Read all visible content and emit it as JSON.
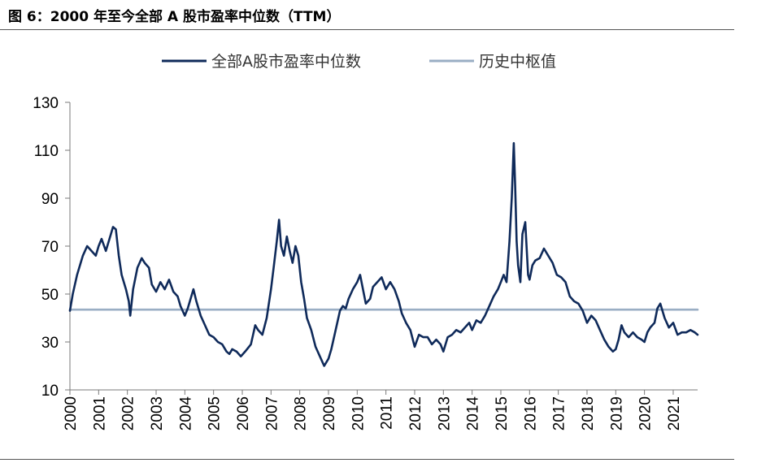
{
  "figure": {
    "title": "图 6：2000 年至今全部 A 股市盈率中位数（TTM）"
  },
  "colors": {
    "series": "#0f2a5a",
    "hline": "#9aaec4",
    "axis": "#7a7a7a"
  },
  "chart_data": {
    "type": "line",
    "title": "",
    "xlabel": "",
    "ylabel": "",
    "ylim": [
      10,
      130
    ],
    "yticks": [
      10,
      30,
      50,
      70,
      90,
      110,
      130
    ],
    "xlim": [
      2000.0,
      2021.85
    ],
    "xticks": [
      "2000",
      "2001",
      "2002",
      "2003",
      "2004",
      "2005",
      "2006",
      "2007",
      "2008",
      "2009",
      "2010",
      "2011",
      "2012",
      "2013",
      "2014",
      "2015",
      "2016",
      "2017",
      "2018",
      "2019",
      "2020",
      "2021"
    ],
    "grid": false,
    "legend": "top-center",
    "series": [
      {
        "name": "全部A股市盈率中位数",
        "points": [
          [
            2000.0,
            43
          ],
          [
            2000.1,
            50
          ],
          [
            2000.25,
            58
          ],
          [
            2000.45,
            66
          ],
          [
            2000.6,
            70
          ],
          [
            2000.75,
            68
          ],
          [
            2000.9,
            66
          ],
          [
            2001.0,
            70
          ],
          [
            2001.1,
            73
          ],
          [
            2001.25,
            68
          ],
          [
            2001.4,
            74
          ],
          [
            2001.5,
            78
          ],
          [
            2001.6,
            77
          ],
          [
            2001.7,
            66
          ],
          [
            2001.8,
            58
          ],
          [
            2001.95,
            52
          ],
          [
            2002.05,
            47
          ],
          [
            2002.1,
            41
          ],
          [
            2002.2,
            52
          ],
          [
            2002.35,
            61
          ],
          [
            2002.5,
            65
          ],
          [
            2002.6,
            63
          ],
          [
            2002.75,
            61
          ],
          [
            2002.85,
            54
          ],
          [
            2003.0,
            51
          ],
          [
            2003.15,
            55
          ],
          [
            2003.3,
            52
          ],
          [
            2003.45,
            56
          ],
          [
            2003.6,
            51
          ],
          [
            2003.75,
            49
          ],
          [
            2003.85,
            45
          ],
          [
            2004.0,
            41
          ],
          [
            2004.1,
            44
          ],
          [
            2004.2,
            48
          ],
          [
            2004.3,
            52
          ],
          [
            2004.4,
            47
          ],
          [
            2004.55,
            41
          ],
          [
            2004.7,
            37
          ],
          [
            2004.85,
            33
          ],
          [
            2005.0,
            32
          ],
          [
            2005.15,
            30
          ],
          [
            2005.3,
            29
          ],
          [
            2005.45,
            26
          ],
          [
            2005.55,
            25
          ],
          [
            2005.65,
            27
          ],
          [
            2005.8,
            26
          ],
          [
            2005.95,
            24
          ],
          [
            2006.1,
            26
          ],
          [
            2006.3,
            29
          ],
          [
            2006.45,
            37
          ],
          [
            2006.55,
            35
          ],
          [
            2006.7,
            33
          ],
          [
            2006.85,
            40
          ],
          [
            2007.0,
            52
          ],
          [
            2007.1,
            62
          ],
          [
            2007.2,
            72
          ],
          [
            2007.28,
            81
          ],
          [
            2007.35,
            70
          ],
          [
            2007.45,
            66
          ],
          [
            2007.55,
            74
          ],
          [
            2007.65,
            68
          ],
          [
            2007.75,
            63
          ],
          [
            2007.85,
            70
          ],
          [
            2007.95,
            66
          ],
          [
            2008.05,
            55
          ],
          [
            2008.15,
            48
          ],
          [
            2008.25,
            40
          ],
          [
            2008.4,
            35
          ],
          [
            2008.55,
            28
          ],
          [
            2008.7,
            24
          ],
          [
            2008.85,
            20
          ],
          [
            2009.0,
            23
          ],
          [
            2009.1,
            27
          ],
          [
            2009.25,
            35
          ],
          [
            2009.4,
            43
          ],
          [
            2009.5,
            45
          ],
          [
            2009.6,
            44
          ],
          [
            2009.7,
            48
          ],
          [
            2009.85,
            52
          ],
          [
            2010.0,
            55
          ],
          [
            2010.1,
            58
          ],
          [
            2010.2,
            52
          ],
          [
            2010.3,
            46
          ],
          [
            2010.45,
            48
          ],
          [
            2010.55,
            53
          ],
          [
            2010.7,
            55
          ],
          [
            2010.85,
            57
          ],
          [
            2011.0,
            52
          ],
          [
            2011.15,
            55
          ],
          [
            2011.3,
            52
          ],
          [
            2011.45,
            47
          ],
          [
            2011.55,
            42
          ],
          [
            2011.7,
            38
          ],
          [
            2011.85,
            35
          ],
          [
            2012.0,
            28
          ],
          [
            2012.15,
            33
          ],
          [
            2012.3,
            32
          ],
          [
            2012.45,
            32
          ],
          [
            2012.6,
            29
          ],
          [
            2012.75,
            31
          ],
          [
            2012.9,
            29
          ],
          [
            2013.0,
            26
          ],
          [
            2013.15,
            32
          ],
          [
            2013.3,
            33
          ],
          [
            2013.45,
            35
          ],
          [
            2013.6,
            34
          ],
          [
            2013.75,
            36
          ],
          [
            2013.9,
            38
          ],
          [
            2014.0,
            35
          ],
          [
            2014.15,
            39
          ],
          [
            2014.3,
            38
          ],
          [
            2014.45,
            41
          ],
          [
            2014.6,
            45
          ],
          [
            2014.75,
            49
          ],
          [
            2014.9,
            52
          ],
          [
            2015.0,
            55
          ],
          [
            2015.1,
            58
          ],
          [
            2015.2,
            55
          ],
          [
            2015.3,
            72
          ],
          [
            2015.38,
            90
          ],
          [
            2015.45,
            113
          ],
          [
            2015.5,
            95
          ],
          [
            2015.55,
            72
          ],
          [
            2015.6,
            62
          ],
          [
            2015.68,
            55
          ],
          [
            2015.75,
            75
          ],
          [
            2015.85,
            80
          ],
          [
            2015.95,
            58
          ],
          [
            2016.0,
            56
          ],
          [
            2016.1,
            62
          ],
          [
            2016.2,
            64
          ],
          [
            2016.35,
            65
          ],
          [
            2016.5,
            69
          ],
          [
            2016.65,
            66
          ],
          [
            2016.8,
            63
          ],
          [
            2016.95,
            58
          ],
          [
            2017.1,
            57
          ],
          [
            2017.25,
            55
          ],
          [
            2017.4,
            49
          ],
          [
            2017.55,
            47
          ],
          [
            2017.7,
            46
          ],
          [
            2017.85,
            43
          ],
          [
            2018.0,
            38
          ],
          [
            2018.15,
            41
          ],
          [
            2018.3,
            39
          ],
          [
            2018.45,
            35
          ],
          [
            2018.6,
            31
          ],
          [
            2018.75,
            28
          ],
          [
            2018.9,
            26
          ],
          [
            2019.0,
            27
          ],
          [
            2019.1,
            31
          ],
          [
            2019.2,
            37
          ],
          [
            2019.3,
            34
          ],
          [
            2019.45,
            32
          ],
          [
            2019.6,
            34
          ],
          [
            2019.75,
            32
          ],
          [
            2019.9,
            31
          ],
          [
            2020.0,
            30
          ],
          [
            2020.1,
            34
          ],
          [
            2020.2,
            36
          ],
          [
            2020.35,
            38
          ],
          [
            2020.45,
            44
          ],
          [
            2020.55,
            46
          ],
          [
            2020.7,
            40
          ],
          [
            2020.85,
            36
          ],
          [
            2021.0,
            38
          ],
          [
            2021.15,
            33
          ],
          [
            2021.3,
            34
          ],
          [
            2021.45,
            34
          ],
          [
            2021.6,
            35
          ],
          [
            2021.75,
            34
          ],
          [
            2021.85,
            33
          ]
        ]
      },
      {
        "name": "历史中枢值",
        "points": [
          [
            2000.0,
            43.5
          ],
          [
            2021.85,
            43.5
          ]
        ]
      }
    ]
  }
}
